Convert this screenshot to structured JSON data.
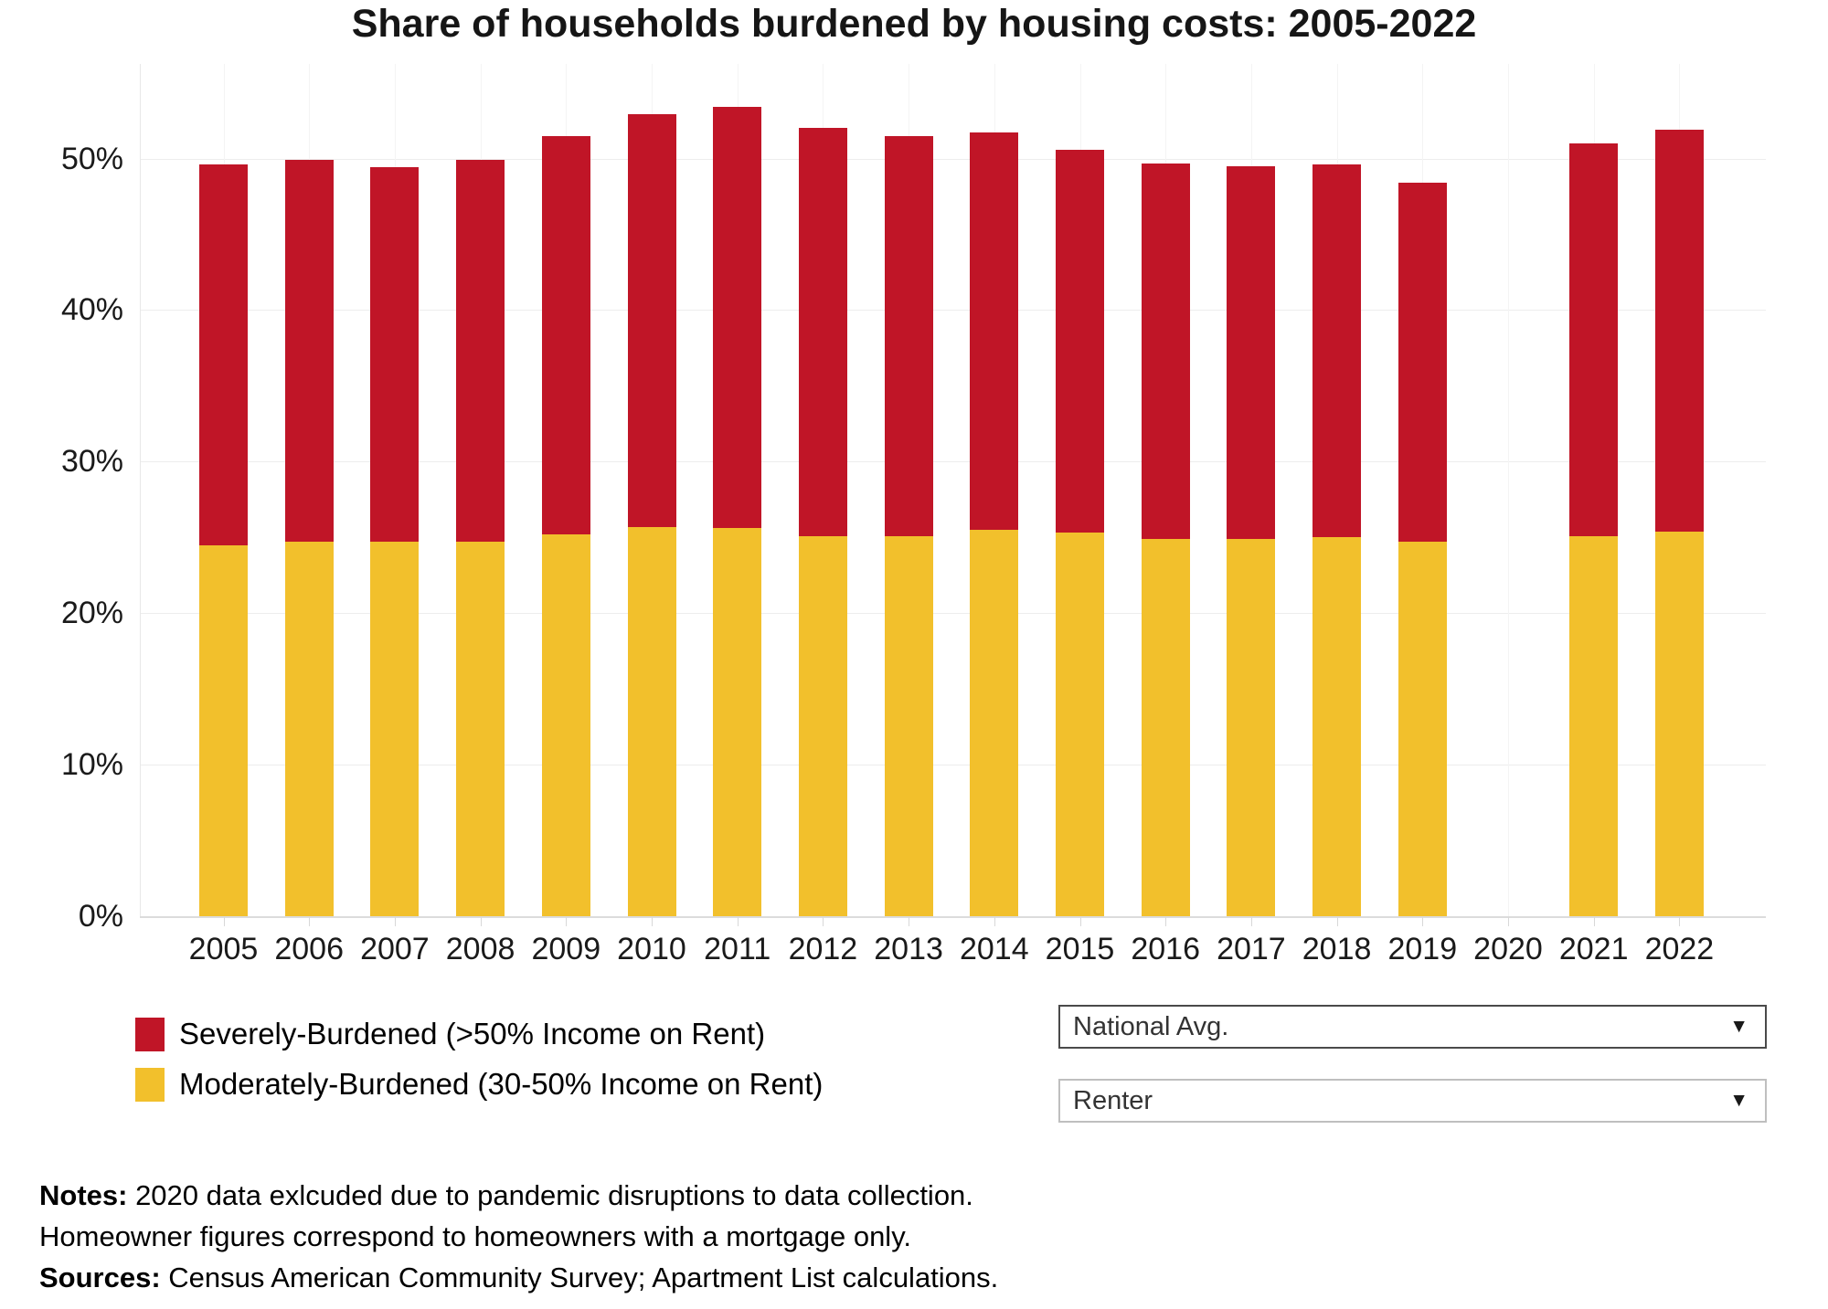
{
  "title": "Share of households burdened by housing costs: 2005-2022",
  "chart_data": {
    "type": "bar",
    "stacked": true,
    "title": "Share of households burdened by housing costs: 2005-2022",
    "categories": [
      "2005",
      "2006",
      "2007",
      "2008",
      "2009",
      "2010",
      "2011",
      "2012",
      "2013",
      "2014",
      "2015",
      "2016",
      "2017",
      "2018",
      "2019",
      "2020",
      "2021",
      "2022"
    ],
    "series": [
      {
        "name": "Severely-Burdened (>50% Income on Rent)",
        "color": "#c01527",
        "values": [
          25.1,
          25.2,
          24.7,
          25.2,
          26.3,
          27.2,
          27.8,
          26.9,
          26.4,
          26.2,
          25.3,
          24.8,
          24.6,
          24.6,
          23.7,
          null,
          25.9,
          26.5
        ]
      },
      {
        "name": "Moderately-Burdened (30-50% Income on Rent)",
        "color": "#f2c02c",
        "values": [
          24.5,
          24.7,
          24.7,
          24.7,
          25.2,
          25.7,
          25.6,
          25.1,
          25.1,
          25.5,
          25.3,
          24.9,
          24.9,
          25.0,
          24.7,
          null,
          25.1,
          25.4
        ]
      }
    ],
    "totals": [
      49.6,
      49.9,
      49.4,
      49.9,
      51.5,
      52.9,
      53.4,
      52.0,
      51.5,
      51.7,
      50.6,
      49.7,
      49.5,
      49.6,
      48.4,
      null,
      51.0,
      51.9
    ],
    "stack_bottom_to_top": [
      "Moderately-Burdened (30-50% Income on Rent)",
      "Severely-Burdened (>50% Income on Rent)"
    ],
    "xlabel": "",
    "ylabel": "",
    "yticks": [
      "0%",
      "10%",
      "20%",
      "30%",
      "40%",
      "50%"
    ],
    "ylim": [
      0,
      56
    ],
    "grid": true,
    "legend_position": "bottom-left",
    "excluded_category": "2020"
  },
  "legend": {
    "items": [
      {
        "label": "Severely-Burdened (>50% Income on Rent)",
        "color": "#c01527"
      },
      {
        "label": "Moderately-Burdened (30-50% Income on Rent)",
        "color": "#f2c02c"
      }
    ]
  },
  "controls": {
    "location": {
      "value": "National Avg."
    },
    "tenure": {
      "value": "Renter"
    }
  },
  "icons": {
    "dropdown_caret": "▼"
  },
  "notes": {
    "notes_label": "Notes:",
    "notes_text": " 2020 data exlcuded due to pandemic disruptions to data collection.",
    "line2": "Homeowner figures correspond to homeowners with a mortgage only.",
    "sources_label": "Sources:",
    "sources_text": " Census American Community Survey; Apartment List calculations."
  }
}
